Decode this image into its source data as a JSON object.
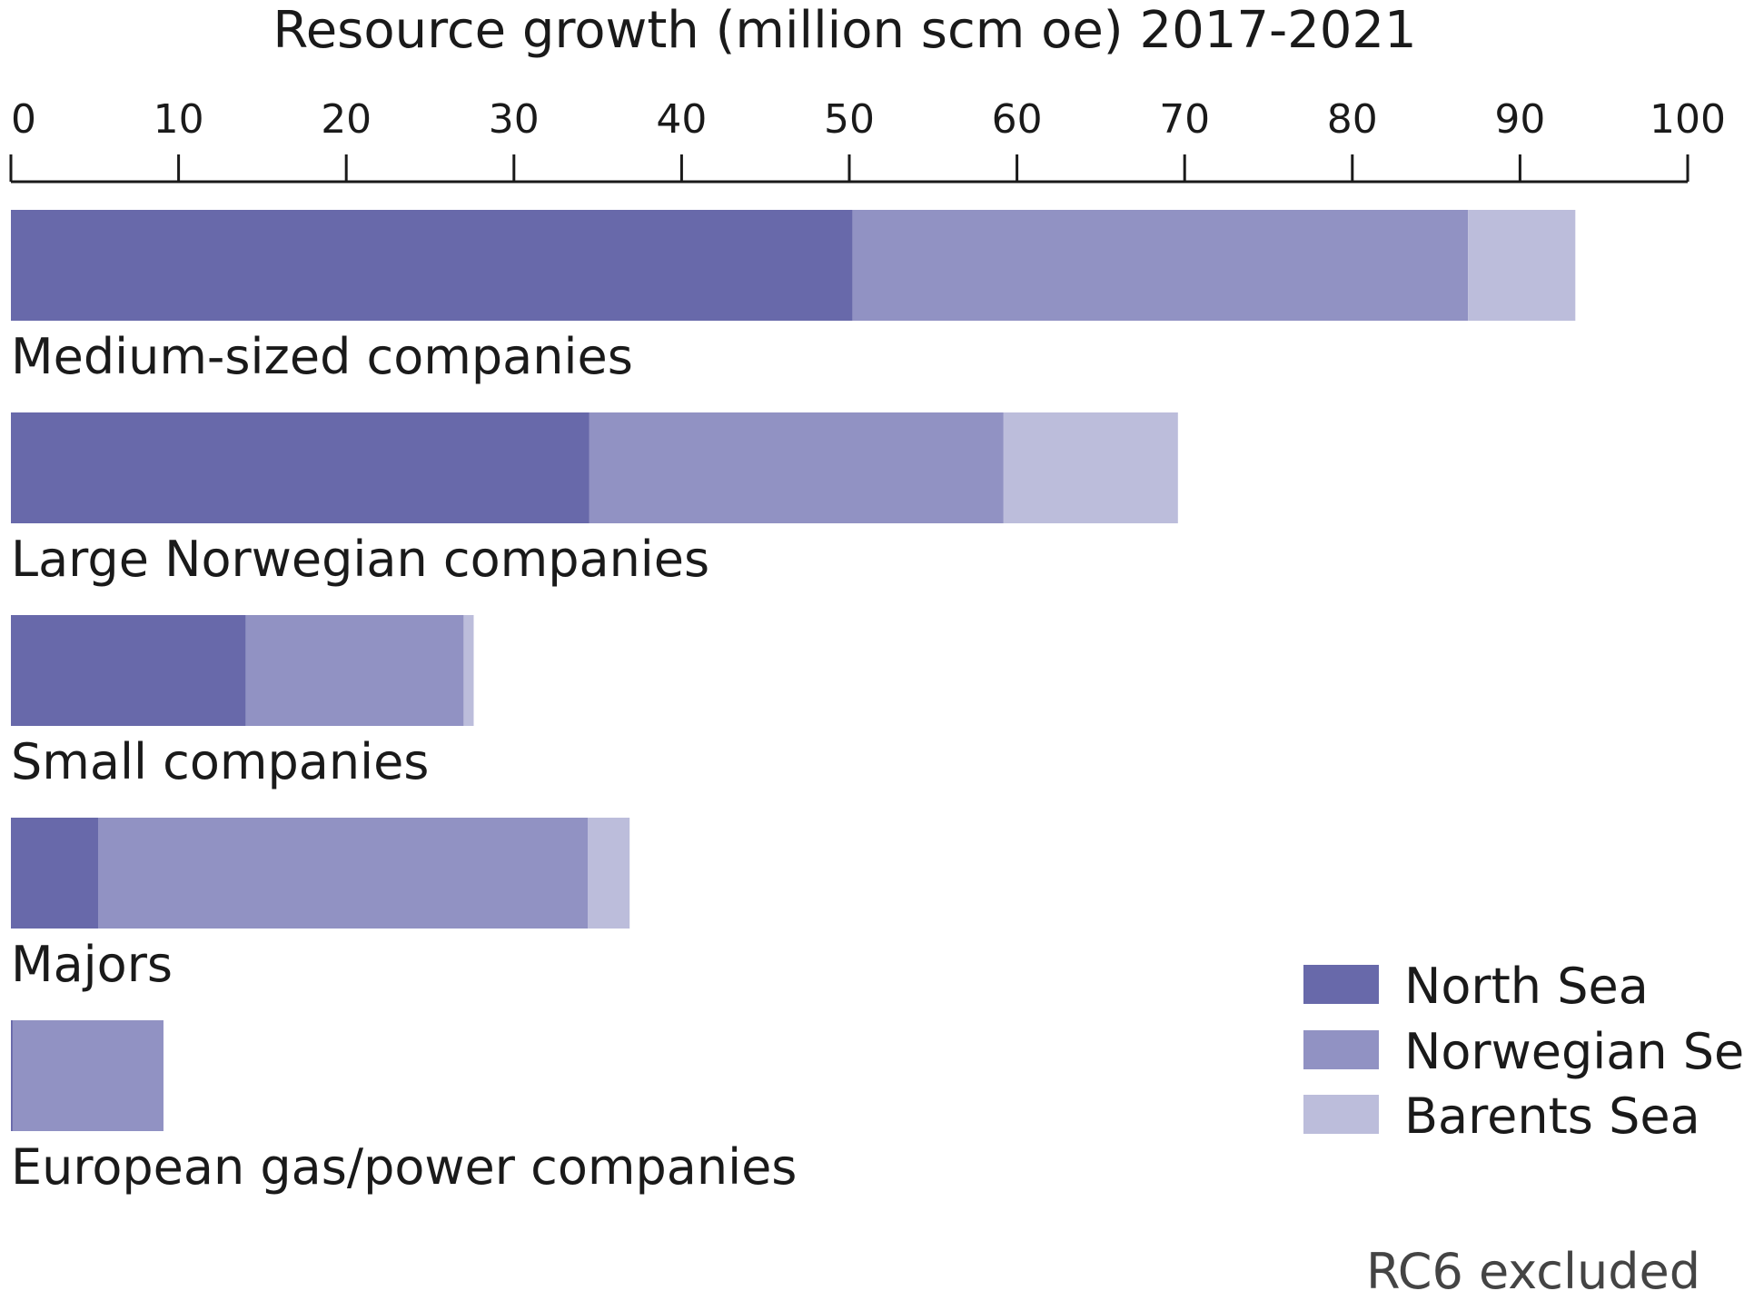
{
  "chart_data": {
    "type": "bar",
    "orientation": "horizontal",
    "stacked": true,
    "title": "Resource growth (million scm oe) 2017-2021",
    "xlabel": "",
    "ylabel": "",
    "xlim": [
      0,
      100
    ],
    "xticks": [
      0,
      10,
      20,
      30,
      40,
      50,
      60,
      70,
      80,
      90,
      100
    ],
    "tick_labels": [
      "0",
      "10",
      "20",
      "30",
      "40",
      "50",
      "60",
      "70",
      "80",
      "90",
      "100"
    ],
    "axis_position": "top",
    "categories": [
      "Medium-sized companies",
      "Large Norwegian companies",
      "Small companies",
      "Majors",
      "European gas/power companies"
    ],
    "series": [
      {
        "name": "North Sea",
        "color": "#6869aa",
        "values": [
          50.2,
          34.5,
          14.0,
          5.2,
          0.1
        ]
      },
      {
        "name": "Norwegian Sea",
        "color": "#9192c3",
        "values": [
          36.7,
          24.7,
          13.0,
          29.2,
          9.0
        ]
      },
      {
        "name": "Barents Sea",
        "color": "#bcbddb",
        "values": [
          6.4,
          10.4,
          0.6,
          2.5,
          0.0
        ]
      }
    ],
    "legend_position": "bottom-right",
    "note": "RC6 excluded",
    "axis_color": "#1a1a1a"
  }
}
